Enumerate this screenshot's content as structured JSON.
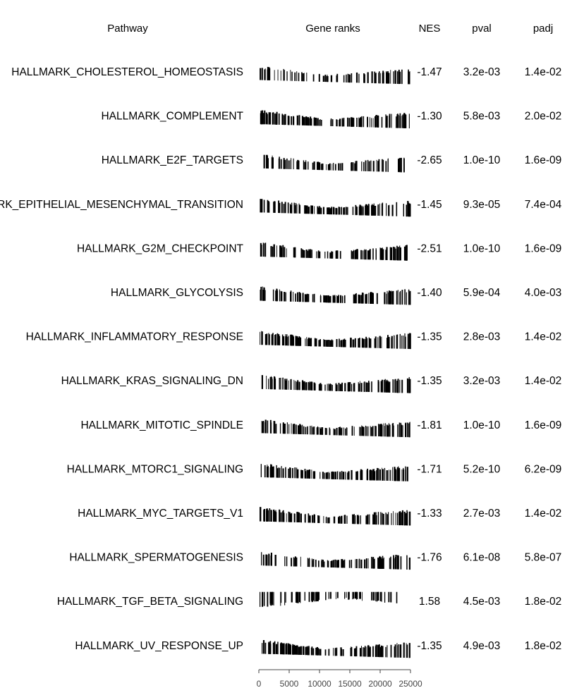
{
  "chart_data": {
    "type": "table",
    "columns": [
      "Pathway",
      "Gene ranks",
      "NES",
      "pval",
      "padj"
    ],
    "x_axis": {
      "ticks": [
        0,
        5000,
        10000,
        15000,
        20000,
        25000
      ],
      "tick_labels": [
        "0",
        "5000",
        "10000",
        "15000",
        "20000",
        "25000"
      ],
      "range": [
        0,
        25000
      ]
    },
    "rows": [
      {
        "pathway": "HALLMARK_CHOLESTEROL_HOMEOSTASIS",
        "nes": "-1.47",
        "pval": "3.2e-03",
        "padj": "1.4e-02",
        "nes_value": -1.47,
        "density": 0.45,
        "dir": 1
      },
      {
        "pathway": "HALLMARK_COMPLEMENT",
        "nes": "-1.30",
        "pval": "5.8e-03",
        "padj": "2.0e-02",
        "nes_value": -1.3,
        "density": 1.0,
        "dir": 1
      },
      {
        "pathway": "HALLMARK_E2F_TARGETS",
        "nes": "-2.65",
        "pval": "1.0e-10",
        "padj": "1.6e-09",
        "nes_value": -2.65,
        "density": 0.55,
        "dir": 1
      },
      {
        "pathway": "HALLMARK_EPITHELIAL_MESENCHYMAL_TRANSITION",
        "nes": "-1.45",
        "pval": "9.3e-05",
        "padj": "7.4e-04",
        "nes_value": -1.45,
        "density": 1.0,
        "dir": 1
      },
      {
        "pathway": "HALLMARK_G2M_CHECKPOINT",
        "nes": "-2.51",
        "pval": "1.0e-10",
        "padj": "1.6e-09",
        "nes_value": -2.51,
        "density": 0.7,
        "dir": 1
      },
      {
        "pathway": "HALLMARK_GLYCOLYSIS",
        "nes": "-1.40",
        "pval": "5.9e-04",
        "padj": "4.0e-03",
        "nes_value": -1.4,
        "density": 1.0,
        "dir": 1
      },
      {
        "pathway": "HALLMARK_INFLAMMATORY_RESPONSE",
        "nes": "-1.35",
        "pval": "2.8e-03",
        "padj": "1.4e-02",
        "nes_value": -1.35,
        "density": 1.0,
        "dir": 1
      },
      {
        "pathway": "HALLMARK_KRAS_SIGNALING_DN",
        "nes": "-1.35",
        "pval": "3.2e-03",
        "padj": "1.4e-02",
        "nes_value": -1.35,
        "density": 1.0,
        "dir": 1
      },
      {
        "pathway": "HALLMARK_MITOTIC_SPINDLE",
        "nes": "-1.81",
        "pval": "1.0e-10",
        "padj": "1.6e-09",
        "nes_value": -1.81,
        "density": 0.9,
        "dir": 1
      },
      {
        "pathway": "HALLMARK_MTORC1_SIGNALING",
        "nes": "-1.71",
        "pval": "5.2e-10",
        "padj": "6.2e-09",
        "nes_value": -1.71,
        "density": 1.0,
        "dir": 1
      },
      {
        "pathway": "HALLMARK_MYC_TARGETS_V1",
        "nes": "-1.33",
        "pval": "2.7e-03",
        "padj": "1.4e-02",
        "nes_value": -1.33,
        "density": 1.0,
        "dir": 1
      },
      {
        "pathway": "HALLMARK_SPERMATOGENESIS",
        "nes": "-1.76",
        "pval": "6.1e-08",
        "padj": "5.8e-07",
        "nes_value": -1.76,
        "density": 0.7,
        "dir": 1
      },
      {
        "pathway": "HALLMARK_TGF_BETA_SIGNALING",
        "nes": "1.58",
        "pval": "4.5e-03",
        "padj": "1.8e-02",
        "nes_value": 1.58,
        "density": 0.35,
        "dir": -1
      },
      {
        "pathway": "HALLMARK_UV_RESPONSE_UP",
        "nes": "-1.35",
        "pval": "4.9e-03",
        "padj": "1.8e-02",
        "nes_value": -1.35,
        "density": 1.0,
        "dir": 1
      }
    ],
    "colors": {
      "bars": "#000000",
      "text": "#000000",
      "axis": "#444444"
    }
  }
}
